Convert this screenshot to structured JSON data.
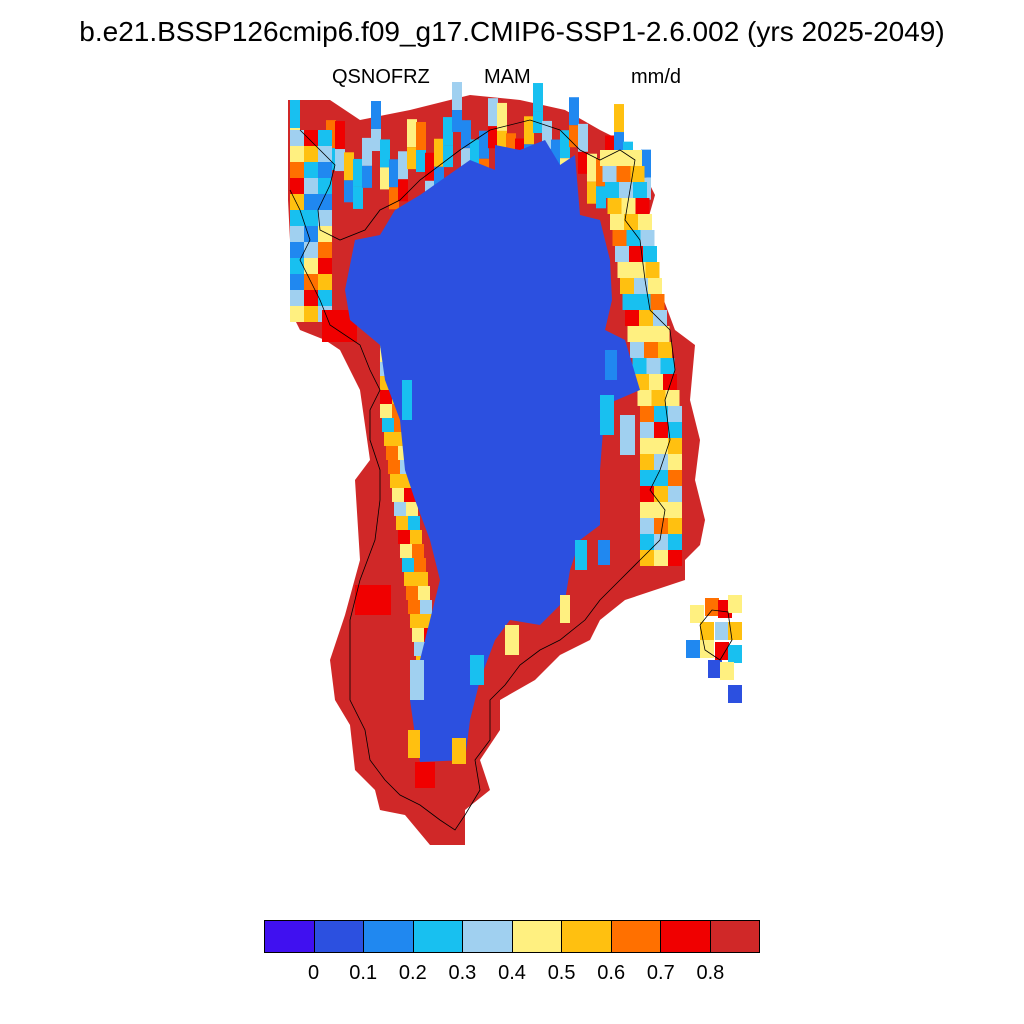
{
  "title": "b.e21.BSSP126cmip6.f09_g17.CMIP6-SSP1-2.6.002 (yrs 2025-2049)",
  "variable": "QSNOFRZ",
  "season": "MAM",
  "units": "mm/d",
  "colorbar": {
    "colors": [
      "#4010f0",
      "#2c50e0",
      "#2088f0",
      "#18c0f0",
      "#a0d0f0",
      "#fff080",
      "#ffc010",
      "#ff7000",
      "#f00000",
      "#d02828"
    ],
    "tick_labels": [
      "0",
      "0.1",
      "0.2",
      "0.3",
      "0.4",
      "0.5",
      "0.6",
      "0.7",
      "0.8"
    ]
  },
  "map_data": {
    "region": "Greenland",
    "interior_value_class": "0-0.1",
    "southwest_coast_value_class": ">0.8"
  }
}
